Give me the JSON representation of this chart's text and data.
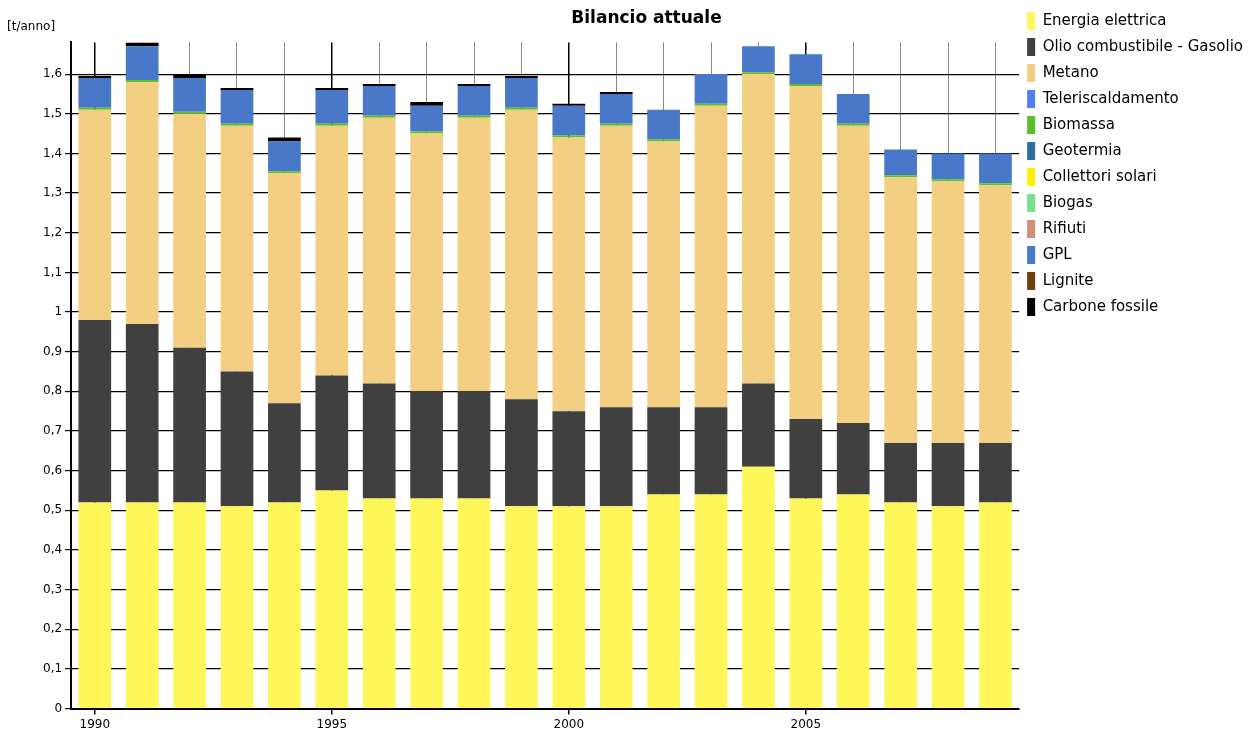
{
  "chart_data": {
    "type": "bar",
    "title": "Bilancio attuale",
    "ylabel": "[t/anno]",
    "stacked": true,
    "grid": true,
    "legend": "top right",
    "categories": [
      "1990",
      null,
      null,
      null,
      null,
      "1995",
      null,
      null,
      null,
      null,
      "2000",
      null,
      null,
      null,
      null,
      "2005",
      null,
      null,
      null,
      null
    ],
    "ylim": [
      0,
      1.68
    ],
    "yticks": [
      0,
      {
        "value": 0.1,
        "label": "0,1"
      },
      {
        "value": 0.2,
        "label": "0,2"
      },
      {
        "value": 0.3,
        "label": "0,3"
      },
      {
        "value": 0.4,
        "label": "0,4"
      },
      {
        "value": 0.5,
        "label": "0,5"
      },
      {
        "value": 0.6,
        "label": "0,6"
      },
      {
        "value": 0.7,
        "label": "0,7"
      },
      {
        "value": 0.8,
        "label": "0,8"
      },
      {
        "value": 0.9,
        "label": "0,9"
      },
      1,
      {
        "value": 1.1,
        "label": "1,1"
      },
      {
        "value": 1.2,
        "label": "1,2"
      },
      {
        "value": 1.3,
        "label": "1,3"
      },
      {
        "value": 1.4,
        "label": "1,4"
      },
      {
        "value": 1.5,
        "label": "1,5"
      },
      {
        "value": 1.6,
        "label": "1,6"
      }
    ],
    "series": [
      {
        "name": "Energia elettrica",
        "color": "#fff75a",
        "values": [
          0.52,
          0.52,
          0.52,
          0.51,
          0.52,
          0.55,
          0.53,
          0.53,
          0.53,
          0.51,
          0.51,
          0.51,
          0.54,
          0.54,
          0.61,
          0.53,
          0.54,
          0.52,
          0.51,
          0.52
        ]
      },
      {
        "name": "Olio combustibile - Gasolio",
        "color": "#404040",
        "values": [
          0.46,
          0.45,
          0.39,
          0.34,
          0.25,
          0.29,
          0.29,
          0.27,
          0.27,
          0.27,
          0.24,
          0.25,
          0.22,
          0.22,
          0.21,
          0.2,
          0.18,
          0.15,
          0.16,
          0.15
        ]
      },
      {
        "name": "Metano",
        "color": "#f2cf82",
        "values": [
          0.53,
          0.61,
          0.59,
          0.62,
          0.58,
          0.63,
          0.67,
          0.65,
          0.69,
          0.73,
          0.69,
          0.71,
          0.67,
          0.76,
          0.78,
          0.84,
          0.75,
          0.67,
          0.66,
          0.65
        ]
      },
      {
        "name": "Teleriscaldamento",
        "color": "#4f7ff5",
        "values": [
          0,
          0,
          0,
          0,
          0,
          0,
          0,
          0,
          0,
          0,
          0,
          0,
          0,
          0,
          0,
          0,
          0,
          0,
          0,
          0
        ]
      },
      {
        "name": "Biomassa",
        "color": "#5cbf2a",
        "values": [
          0.005,
          0.005,
          0.005,
          0.005,
          0.005,
          0.005,
          0.005,
          0.005,
          0.005,
          0.005,
          0.005,
          0.005,
          0.005,
          0.005,
          0.005,
          0.005,
          0.005,
          0.005,
          0.005,
          0.005
        ]
      },
      {
        "name": "Geotermia",
        "color": "#2f6fa0",
        "values": [
          0,
          0,
          0,
          0,
          0,
          0,
          0,
          0,
          0,
          0,
          0,
          0,
          0,
          0,
          0,
          0,
          0,
          0,
          0,
          0
        ]
      },
      {
        "name": "Collettori solari",
        "color": "#fff200",
        "values": [
          0,
          0,
          0,
          0,
          0,
          0,
          0,
          0,
          0,
          0,
          0,
          0,
          0,
          0,
          0,
          0,
          0,
          0,
          0,
          0
        ]
      },
      {
        "name": "Biogas",
        "color": "#77e08a",
        "values": [
          0,
          0,
          0,
          0,
          0,
          0,
          0,
          0,
          0,
          0,
          0,
          0,
          0,
          0,
          0,
          0,
          0,
          0,
          0,
          0
        ]
      },
      {
        "name": "Rifiuti",
        "color": "#d28f78",
        "values": [
          0,
          0,
          0,
          0,
          0,
          0,
          0,
          0,
          0,
          0,
          0,
          0,
          0,
          0,
          0,
          0,
          0,
          0,
          0,
          0
        ]
      },
      {
        "name": "GPL",
        "color": "#4a78c8",
        "values": [
          0.075,
          0.085,
          0.085,
          0.085,
          0.075,
          0.085,
          0.075,
          0.065,
          0.075,
          0.075,
          0.075,
          0.075,
          0.075,
          0.075,
          0.065,
          0.075,
          0.075,
          0.065,
          0.065,
          0.075
        ]
      },
      {
        "name": "Lignite",
        "color": "#6b3f10",
        "values": [
          0,
          0,
          0,
          0,
          0,
          0,
          0,
          0,
          0,
          0,
          0,
          0,
          0,
          0,
          0,
          0,
          0,
          0,
          0,
          0
        ]
      },
      {
        "name": "Carbone fossile",
        "color": "#000000",
        "values": [
          0.005,
          0.01,
          0.01,
          0.005,
          0.01,
          0.005,
          0.005,
          0.01,
          0.005,
          0.005,
          0.005,
          0.005,
          0,
          0,
          0,
          0,
          0,
          0,
          0,
          0
        ]
      }
    ]
  }
}
